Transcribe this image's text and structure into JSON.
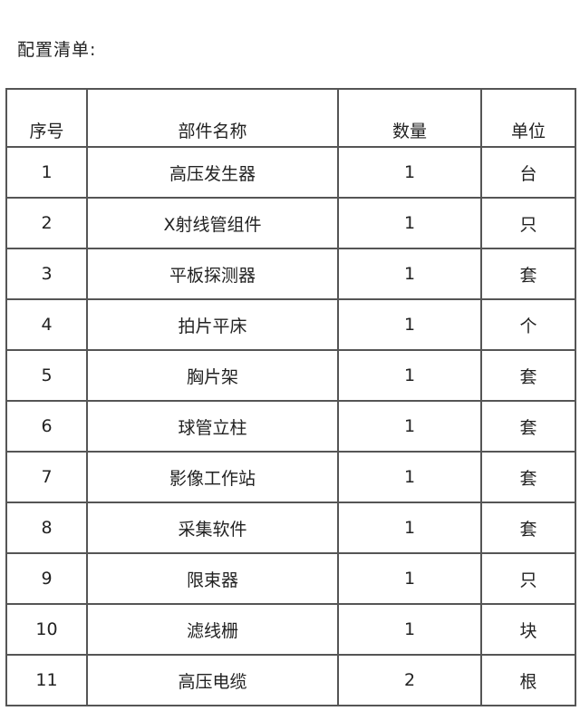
{
  "title": "配置清单:",
  "table": {
    "headers": [
      "序号",
      "部件名称",
      "数量",
      "单位"
    ],
    "rows": [
      [
        "1",
        "高压发生器",
        "1",
        "台"
      ],
      [
        "2",
        "X射线管组件",
        "1",
        "只"
      ],
      [
        "3",
        "平板探测器",
        "1",
        "套"
      ],
      [
        "4",
        "拍片平床",
        "1",
        "个"
      ],
      [
        "5",
        "胸片架",
        "1",
        "套"
      ],
      [
        "6",
        "球管立柱",
        "1",
        "套"
      ],
      [
        "7",
        "影像工作站",
        "1",
        "套"
      ],
      [
        "8",
        "采集软件",
        "1",
        "套"
      ],
      [
        "9",
        "限束器",
        "1",
        "只"
      ],
      [
        "10",
        "滤线栅",
        "1",
        "块"
      ],
      [
        "11",
        "高压电缆",
        "2",
        "根"
      ]
    ]
  }
}
